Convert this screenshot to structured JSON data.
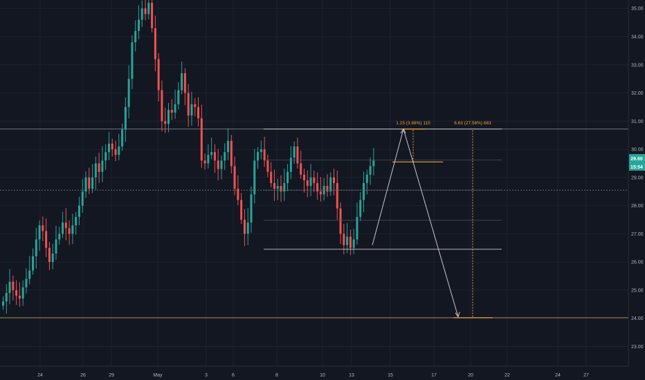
{
  "colors": {
    "background": "#131722",
    "grid": "#1e2230",
    "axis_text": "#b2b5be",
    "candle_up": "#26a69a",
    "candle_down": "#ef5350",
    "drawing": "#c8c8c8",
    "measure": "#f0a030",
    "target_line": "#a08a3a",
    "price_badge": "#26a69a",
    "price_badge_text": "#ffffff"
  },
  "annotations": {
    "measure_short": "1.15 (3.88%) 115",
    "measure_long": "6.63 (27.56%) 663"
  },
  "price_badge": {
    "price": "29.60",
    "countdown": "15:54"
  },
  "chart_data": {
    "type": "candlestick",
    "y_axis": {
      "min": 22.3,
      "max": 35.3,
      "tick_labels": [
        "35.00",
        "34.00",
        "33.00",
        "32.00",
        "31.00",
        "30.00",
        "29.00",
        "28.00",
        "27.00",
        "26.00",
        "25.00",
        "24.00",
        "23.00"
      ]
    },
    "x_axis": {
      "tick_labels": [
        "24",
        "26",
        "29",
        "May",
        "3",
        "6",
        "8",
        "10",
        "13",
        "15",
        "17",
        "20",
        "22",
        "24",
        "27"
      ]
    },
    "grid": true,
    "horizontal_levels": [
      {
        "name": "resistance",
        "price": 30.72
      },
      {
        "name": "current",
        "price": 28.55
      },
      {
        "name": "target",
        "price": 24.02
      }
    ],
    "range_levels": {
      "top": 30.72,
      "bottom": 26.45,
      "inner": [
        29.62,
        28.55,
        27.48
      ]
    },
    "projection": {
      "start": 26.6,
      "peak": 30.72,
      "end": 24.05
    },
    "candles_close": [
      24.6,
      24.9,
      25.3,
      25.0,
      24.8,
      24.7,
      25.1,
      25.4,
      25.7,
      26.2,
      26.8,
      27.3,
      27.1,
      26.5,
      26.0,
      26.3,
      26.8,
      27.0,
      27.4,
      27.2,
      27.0,
      27.3,
      27.6,
      28.0,
      28.5,
      29.0,
      28.6,
      29.0,
      29.5,
      29.2,
      29.6,
      29.9,
      30.2,
      30.0,
      29.8,
      30.1,
      30.7,
      31.5,
      32.5,
      33.8,
      34.2,
      34.6,
      35.0,
      34.8,
      35.2,
      34.3,
      33.2,
      32.1,
      31.0,
      30.9,
      31.4,
      31.3,
      31.6,
      32.1,
      32.7,
      32.0,
      31.2,
      31.6,
      31.5,
      31.1,
      29.6,
      29.5,
      29.8,
      29.9,
      29.6,
      29.3,
      29.6,
      29.9,
      30.3,
      29.4,
      28.6,
      28.2,
      27.5,
      27.0,
      27.4,
      28.4,
      29.6,
      29.9,
      30.0,
      29.6,
      29.2,
      28.8,
      28.6,
      28.7,
      28.5,
      28.8,
      29.2,
      29.7,
      30.1,
      29.5,
      29.1,
      28.9,
      28.7,
      29.0,
      28.8,
      28.5,
      28.4,
      28.7,
      28.5,
      29.0,
      28.8,
      27.9,
      27.0,
      26.6,
      26.9,
      26.5,
      26.8,
      27.6,
      28.2,
      28.8,
      29.1,
      29.4,
      29.6
    ]
  }
}
